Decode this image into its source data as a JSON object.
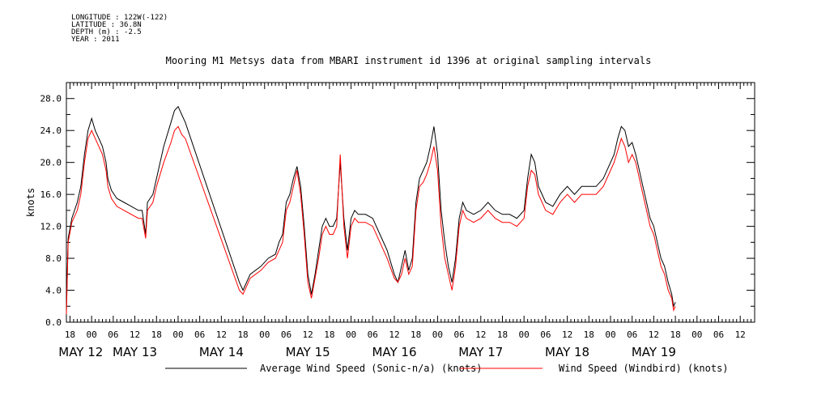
{
  "header": {
    "meta_lines": [
      "LONGITUDE : 122W(-122)",
      "LATITUDE : 36.8N",
      "DEPTH (m) : -2.5",
      "YEAR : 2011"
    ],
    "title": "Mooring M1 Metsys data from MBARI instrument id 1396 at original sampling intervals"
  },
  "chart_data": {
    "type": "line",
    "title": "Mooring M1 Metsys data from MBARI instrument id 1396 at original sampling intervals",
    "ylabel": "knots",
    "xlabel": "",
    "ylim": [
      0,
      30
    ],
    "yticks": [
      "0.0",
      "4.0",
      "8.0",
      "12.0",
      "16.0",
      "20.0",
      "24.0",
      "28.0"
    ],
    "xlim_hours": [
      -7,
      184
    ],
    "hour_tick_labels": [
      {
        "h": -6,
        "label": "18"
      },
      {
        "h": 0,
        "label": "00"
      },
      {
        "h": 6,
        "label": "06"
      },
      {
        "h": 12,
        "label": "12"
      },
      {
        "h": 18,
        "label": "18"
      },
      {
        "h": 24,
        "label": "00"
      },
      {
        "h": 30,
        "label": "06"
      },
      {
        "h": 36,
        "label": "12"
      },
      {
        "h": 42,
        "label": "18"
      },
      {
        "h": 48,
        "label": "00"
      },
      {
        "h": 54,
        "label": "06"
      },
      {
        "h": 60,
        "label": "12"
      },
      {
        "h": 66,
        "label": "18"
      },
      {
        "h": 72,
        "label": "00"
      },
      {
        "h": 78,
        "label": "06"
      },
      {
        "h": 84,
        "label": "12"
      },
      {
        "h": 90,
        "label": "18"
      },
      {
        "h": 96,
        "label": "00"
      },
      {
        "h": 102,
        "label": "06"
      },
      {
        "h": 108,
        "label": "12"
      },
      {
        "h": 114,
        "label": "18"
      },
      {
        "h": 120,
        "label": "00"
      },
      {
        "h": 126,
        "label": "06"
      },
      {
        "h": 132,
        "label": "12"
      },
      {
        "h": 138,
        "label": "18"
      },
      {
        "h": 144,
        "label": "00"
      },
      {
        "h": 150,
        "label": "06"
      },
      {
        "h": 156,
        "label": "12"
      },
      {
        "h": 162,
        "label": "18"
      },
      {
        "h": 168,
        "label": "00"
      },
      {
        "h": 174,
        "label": "06"
      },
      {
        "h": 180,
        "label": "12"
      }
    ],
    "day_labels": [
      {
        "h": -3,
        "label": "MAY 12"
      },
      {
        "h": 12,
        "label": "MAY 13"
      },
      {
        "h": 36,
        "label": "MAY 14"
      },
      {
        "h": 60,
        "label": "MAY 15"
      },
      {
        "h": 84,
        "label": "MAY 16"
      },
      {
        "h": 108,
        "label": "MAY 17"
      },
      {
        "h": 132,
        "label": "MAY 18"
      },
      {
        "h": 156,
        "label": "MAY 19"
      }
    ],
    "x_units": "hours from May 12 00:00, 2011",
    "series": [
      {
        "name": "Average Wind Speed (Sonic-n/a) (knots)",
        "color": "#000000",
        "points": [
          [
            -7,
            1.5
          ],
          [
            -6.5,
            10.5
          ],
          [
            -5.5,
            13
          ],
          [
            -4,
            15
          ],
          [
            -3,
            17
          ],
          [
            -2,
            21
          ],
          [
            -1,
            24
          ],
          [
            0,
            25.5
          ],
          [
            1,
            24
          ],
          [
            2,
            23
          ],
          [
            3,
            22
          ],
          [
            4,
            20
          ],
          [
            4.5,
            18
          ],
          [
            5.5,
            16.5
          ],
          [
            7,
            15.5
          ],
          [
            9,
            15
          ],
          [
            11,
            14.5
          ],
          [
            13,
            14
          ],
          [
            14,
            14
          ],
          [
            15,
            11
          ],
          [
            15.5,
            15
          ],
          [
            17,
            16
          ],
          [
            18,
            18
          ],
          [
            20,
            22
          ],
          [
            22,
            25
          ],
          [
            23,
            26.5
          ],
          [
            24,
            27
          ],
          [
            25,
            26
          ],
          [
            26,
            25
          ],
          [
            41,
            5
          ],
          [
            42,
            4
          ],
          [
            44,
            6
          ],
          [
            47,
            7
          ],
          [
            49,
            8
          ],
          [
            51,
            8.5
          ],
          [
            52,
            10
          ],
          [
            53,
            11
          ],
          [
            54,
            15
          ],
          [
            55,
            16
          ],
          [
            56,
            18
          ],
          [
            57,
            19.5
          ],
          [
            58,
            17
          ],
          [
            59,
            12
          ],
          [
            60,
            6
          ],
          [
            61,
            3.5
          ],
          [
            62,
            6
          ],
          [
            63,
            9
          ],
          [
            64,
            12
          ],
          [
            65,
            13
          ],
          [
            66,
            12
          ],
          [
            67,
            12
          ],
          [
            68,
            13
          ],
          [
            69,
            20
          ],
          [
            70,
            13
          ],
          [
            71,
            9
          ],
          [
            72,
            13
          ],
          [
            73,
            14
          ],
          [
            74,
            13.5
          ],
          [
            76,
            13.5
          ],
          [
            78,
            13
          ],
          [
            80,
            11
          ],
          [
            82,
            9
          ],
          [
            84,
            6
          ],
          [
            85,
            5
          ],
          [
            86,
            7
          ],
          [
            87,
            9
          ],
          [
            88,
            6.5
          ],
          [
            89,
            8
          ],
          [
            90,
            15
          ],
          [
            91,
            18
          ],
          [
            92,
            19
          ],
          [
            93,
            20
          ],
          [
            94,
            22
          ],
          [
            95,
            24.5
          ],
          [
            96,
            21
          ],
          [
            97,
            14
          ],
          [
            98,
            10
          ],
          [
            99,
            7
          ],
          [
            100,
            5
          ],
          [
            101,
            8
          ],
          [
            102,
            13
          ],
          [
            103,
            15
          ],
          [
            104,
            14
          ],
          [
            106,
            13.5
          ],
          [
            108,
            14
          ],
          [
            110,
            15
          ],
          [
            112,
            14
          ],
          [
            114,
            13.5
          ],
          [
            116,
            13.5
          ],
          [
            118,
            13
          ],
          [
            120,
            14
          ],
          [
            121,
            18
          ],
          [
            122,
            21
          ],
          [
            123,
            20
          ],
          [
            124,
            17
          ],
          [
            126,
            15
          ],
          [
            128,
            14.5
          ],
          [
            130,
            16
          ],
          [
            132,
            17
          ],
          [
            134,
            16
          ],
          [
            136,
            17
          ],
          [
            138,
            17
          ],
          [
            140,
            17
          ],
          [
            142,
            18
          ],
          [
            144,
            20
          ],
          [
            145,
            21
          ],
          [
            146,
            23
          ],
          [
            147,
            24.5
          ],
          [
            148,
            24
          ],
          [
            149,
            22
          ],
          [
            150,
            22.5
          ],
          [
            151,
            21
          ],
          [
            152,
            19
          ],
          [
            153,
            17
          ],
          [
            154,
            15
          ],
          [
            155,
            13
          ],
          [
            156,
            12
          ],
          [
            157,
            10
          ],
          [
            158,
            8
          ],
          [
            159,
            7
          ],
          [
            160,
            5
          ],
          [
            161,
            3.5
          ],
          [
            161.5,
            2
          ],
          [
            162,
            2.5
          ]
        ]
      },
      {
        "name": "Wind Speed (Windbird) (knots)",
        "color": "#ff0000",
        "points": [
          [
            -7,
            1
          ],
          [
            -6.5,
            10
          ],
          [
            -5.5,
            12.5
          ],
          [
            -4,
            14
          ],
          [
            -3,
            16
          ],
          [
            -2,
            20
          ],
          [
            -1,
            23
          ],
          [
            0,
            24
          ],
          [
            1,
            23
          ],
          [
            2,
            22
          ],
          [
            3,
            21
          ],
          [
            4,
            19
          ],
          [
            4.5,
            17
          ],
          [
            5.5,
            15.5
          ],
          [
            7,
            14.5
          ],
          [
            9,
            14
          ],
          [
            11,
            13.5
          ],
          [
            13,
            13
          ],
          [
            14,
            13
          ],
          [
            15,
            10.5
          ],
          [
            15.5,
            14
          ],
          [
            17,
            15
          ],
          [
            18,
            17
          ],
          [
            20,
            20
          ],
          [
            22,
            22.5
          ],
          [
            23,
            24
          ],
          [
            24,
            24.5
          ],
          [
            25,
            23.5
          ],
          [
            26,
            23
          ],
          [
            41,
            4
          ],
          [
            42,
            3.5
          ],
          [
            44,
            5.5
          ],
          [
            47,
            6.5
          ],
          [
            49,
            7.5
          ],
          [
            51,
            8
          ],
          [
            52,
            9
          ],
          [
            53,
            10
          ],
          [
            54,
            14
          ],
          [
            55,
            15
          ],
          [
            56,
            17
          ],
          [
            57,
            19
          ],
          [
            58,
            16
          ],
          [
            59,
            11
          ],
          [
            60,
            5
          ],
          [
            61,
            3
          ],
          [
            62,
            5.5
          ],
          [
            63,
            8
          ],
          [
            64,
            11
          ],
          [
            65,
            12
          ],
          [
            66,
            11
          ],
          [
            67,
            11
          ],
          [
            68,
            12
          ],
          [
            69,
            21
          ],
          [
            70,
            12
          ],
          [
            71,
            8
          ],
          [
            72,
            12
          ],
          [
            73,
            13
          ],
          [
            74,
            12.5
          ],
          [
            76,
            12.5
          ],
          [
            78,
            12
          ],
          [
            80,
            10
          ],
          [
            82,
            8
          ],
          [
            84,
            5.5
          ],
          [
            85,
            5
          ],
          [
            86,
            6
          ],
          [
            87,
            8
          ],
          [
            88,
            6
          ],
          [
            89,
            7
          ],
          [
            90,
            14
          ],
          [
            91,
            17
          ],
          [
            92,
            17.5
          ],
          [
            93,
            18.5
          ],
          [
            94,
            20
          ],
          [
            95,
            22
          ],
          [
            96,
            19
          ],
          [
            97,
            12
          ],
          [
            98,
            8
          ],
          [
            99,
            6
          ],
          [
            100,
            4
          ],
          [
            101,
            7
          ],
          [
            102,
            12
          ],
          [
            103,
            14
          ],
          [
            104,
            13
          ],
          [
            106,
            12.5
          ],
          [
            108,
            13
          ],
          [
            110,
            14
          ],
          [
            112,
            13
          ],
          [
            114,
            12.5
          ],
          [
            116,
            12.5
          ],
          [
            118,
            12
          ],
          [
            120,
            13
          ],
          [
            121,
            17
          ],
          [
            122,
            19
          ],
          [
            123,
            18.5
          ],
          [
            124,
            16
          ],
          [
            126,
            14
          ],
          [
            128,
            13.5
          ],
          [
            130,
            15
          ],
          [
            132,
            16
          ],
          [
            134,
            15
          ],
          [
            136,
            16
          ],
          [
            138,
            16
          ],
          [
            140,
            16
          ],
          [
            142,
            17
          ],
          [
            144,
            19
          ],
          [
            145,
            20
          ],
          [
            146,
            21.5
          ],
          [
            147,
            23
          ],
          [
            148,
            22
          ],
          [
            149,
            20
          ],
          [
            150,
            21
          ],
          [
            151,
            20
          ],
          [
            152,
            18
          ],
          [
            153,
            16
          ],
          [
            154,
            14
          ],
          [
            155,
            12
          ],
          [
            156,
            11
          ],
          [
            157,
            9
          ],
          [
            158,
            7
          ],
          [
            159,
            6
          ],
          [
            160,
            4
          ],
          [
            161,
            3
          ],
          [
            161.5,
            1.5
          ],
          [
            162,
            2
          ]
        ]
      }
    ],
    "legend": [
      {
        "label": "Average Wind Speed (Sonic-n/a) (knots)",
        "color": "#000000"
      },
      {
        "label": "Wind Speed (Windbird) (knots)",
        "color": "#ff0000"
      }
    ],
    "legend_placement": "bottom",
    "grid": false
  }
}
